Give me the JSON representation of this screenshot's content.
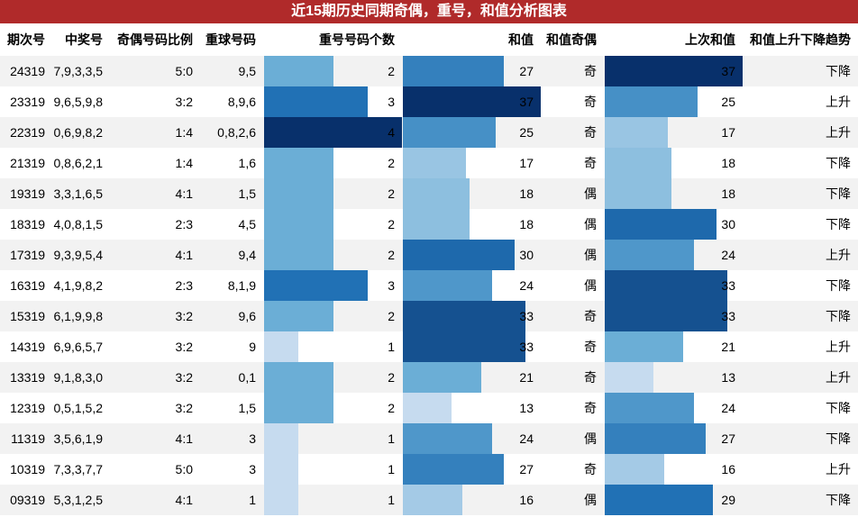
{
  "title": "近15期历史同期奇偶，重号，和值分析图表",
  "table": {
    "header": [
      "期次号",
      "中奖号",
      "奇偶号码比例",
      "重球号码",
      "重号号码个数",
      "和值",
      "和值奇偶",
      "上次和值",
      "和值上升下降趋势"
    ],
    "rows": [
      [
        "24319",
        "7,9,3,3,5",
        "5:0",
        "9,5",
        2,
        27,
        "奇",
        37,
        "下降"
      ],
      [
        "23319",
        "9,6,5,9,8",
        "3:2",
        "8,9,6",
        3,
        37,
        "奇",
        25,
        "上升"
      ],
      [
        "22319",
        "0,6,9,8,2",
        "1:4",
        "0,8,2,6",
        4,
        25,
        "奇",
        17,
        "上升"
      ],
      [
        "21319",
        "0,8,6,2,1",
        "1:4",
        "1,6",
        2,
        17,
        "奇",
        18,
        "下降"
      ],
      [
        "19319",
        "3,3,1,6,5",
        "4:1",
        "1,5",
        2,
        18,
        "偶",
        18,
        "下降"
      ],
      [
        "18319",
        "4,0,8,1,5",
        "2:3",
        "4,5",
        2,
        18,
        "偶",
        30,
        "下降"
      ],
      [
        "17319",
        "9,3,9,5,4",
        "4:1",
        "9,4",
        2,
        30,
        "偶",
        24,
        "上升"
      ],
      [
        "16319",
        "4,1,9,8,2",
        "2:3",
        "8,1,9",
        3,
        24,
        "偶",
        33,
        "下降"
      ],
      [
        "15319",
        "6,1,9,9,8",
        "3:2",
        "9,6",
        2,
        33,
        "奇",
        33,
        "下降"
      ],
      [
        "14319",
        "6,9,6,5,7",
        "3:2",
        "9",
        1,
        33,
        "奇",
        21,
        "上升"
      ],
      [
        "13319",
        "9,1,8,3,0",
        "3:2",
        "0,1",
        2,
        21,
        "奇",
        13,
        "上升"
      ],
      [
        "12319",
        "0,5,1,5,2",
        "3:2",
        "1,5",
        2,
        13,
        "奇",
        24,
        "下降"
      ],
      [
        "11319",
        "3,5,6,1,9",
        "4:1",
        "3",
        1,
        24,
        "偶",
        27,
        "下降"
      ],
      [
        "10319",
        "7,3,3,7,7",
        "5:0",
        "3",
        1,
        27,
        "奇",
        16,
        "上升"
      ],
      [
        "09319",
        "5,3,1,2,5",
        "4:1",
        "1",
        1,
        16,
        "偶",
        29,
        "下降"
      ]
    ]
  }
}
